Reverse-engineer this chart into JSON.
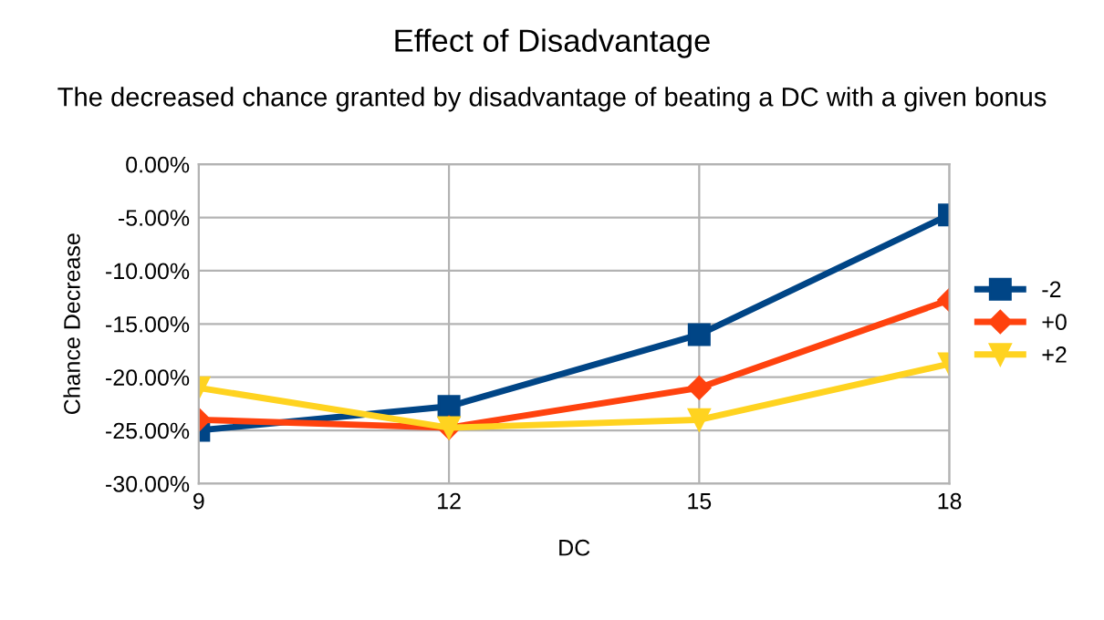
{
  "chart_data": {
    "type": "line",
    "title": "Effect of Disadvantage",
    "subtitle": "The decreased chance granted by disadvantage of beating a DC with a given bonus",
    "xlabel": "DC",
    "ylabel": "Chance Decrease",
    "categories": [
      "9",
      "12",
      "15",
      "18"
    ],
    "series": [
      {
        "name": "-2",
        "color": "#004586",
        "marker": "square",
        "values": [
          -25,
          -22.75,
          -16,
          -4.75
        ]
      },
      {
        "name": "+0",
        "color": "#ff420e",
        "marker": "diamond",
        "values": [
          -24,
          -24.75,
          -21,
          -12.75
        ]
      },
      {
        "name": "+2",
        "color": "#ffd320",
        "marker": "triangle",
        "values": [
          -21,
          -24.75,
          -24,
          -18.75
        ]
      }
    ],
    "ylim": [
      -30,
      0
    ],
    "yticks": [
      {
        "value": -30,
        "label": "-30.00%"
      },
      {
        "value": -25,
        "label": "-25.00%"
      },
      {
        "value": -20,
        "label": "-20.00%"
      },
      {
        "value": -15,
        "label": "-15.00%"
      },
      {
        "value": -10,
        "label": "-10.00%"
      },
      {
        "value": -5,
        "label": "-5.00%"
      },
      {
        "value": 0,
        "label": "0.00%"
      }
    ],
    "grid": true,
    "legend": "right",
    "line_style": "solid"
  }
}
